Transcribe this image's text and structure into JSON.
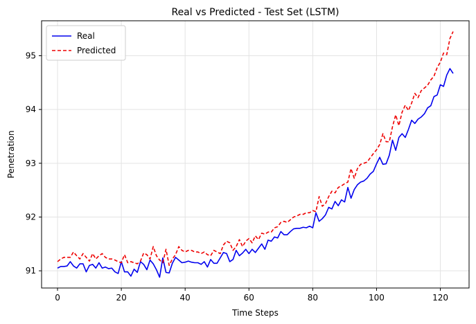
{
  "chart_data": {
    "type": "line",
    "title": "Real vs Predicted - Test Set (LSTM)",
    "xlabel": "Time Steps",
    "ylabel": "Penetration",
    "xlim": [
      -5,
      129
    ],
    "ylim": [
      90.68,
      95.65
    ],
    "xticks": [
      0,
      20,
      40,
      60,
      80,
      100,
      120
    ],
    "yticks": [
      91,
      92,
      93,
      94,
      95
    ],
    "grid": true,
    "legend": "top-left",
    "x": [
      0,
      1,
      2,
      3,
      4,
      5,
      6,
      7,
      8,
      9,
      10,
      11,
      12,
      13,
      14,
      15,
      16,
      17,
      18,
      19,
      20,
      21,
      22,
      23,
      24,
      25,
      26,
      27,
      28,
      29,
      30,
      31,
      32,
      33,
      34,
      35,
      36,
      37,
      38,
      39,
      40,
      41,
      42,
      43,
      44,
      45,
      46,
      47,
      48,
      49,
      50,
      51,
      52,
      53,
      54,
      55,
      56,
      57,
      58,
      59,
      60,
      61,
      62,
      63,
      64,
      65,
      66,
      67,
      68,
      69,
      70,
      71,
      72,
      73,
      74,
      75,
      76,
      77,
      78,
      79,
      80,
      81,
      82,
      83,
      84,
      85,
      86,
      87,
      88,
      89,
      90,
      91,
      92,
      93,
      94,
      95,
      96,
      97,
      98,
      99,
      100,
      101,
      102,
      103,
      104,
      105,
      106,
      107,
      108,
      109,
      110,
      111,
      112,
      113,
      114,
      115,
      116,
      117,
      118,
      119,
      120,
      121,
      122,
      123,
      124
    ],
    "series": [
      {
        "name": "Real",
        "color": "#0000ee",
        "style": "solid",
        "values": [
          91.05,
          91.08,
          91.08,
          91.09,
          91.17,
          91.09,
          91.05,
          91.13,
          91.13,
          90.98,
          91.1,
          91.12,
          91.05,
          91.15,
          91.05,
          91.07,
          91.04,
          91.05,
          90.98,
          90.95,
          91.17,
          90.98,
          90.98,
          90.9,
          91.03,
          90.97,
          91.17,
          91.12,
          91.02,
          91.2,
          91.13,
          91.02,
          90.88,
          91.24,
          90.97,
          90.96,
          91.14,
          91.25,
          91.2,
          91.15,
          91.16,
          91.18,
          91.16,
          91.15,
          91.15,
          91.12,
          91.17,
          91.07,
          91.21,
          91.14,
          91.14,
          91.24,
          91.34,
          91.32,
          91.17,
          91.21,
          91.38,
          91.28,
          91.33,
          91.4,
          91.32,
          91.4,
          91.34,
          91.42,
          91.5,
          91.4,
          91.57,
          91.55,
          91.63,
          91.61,
          91.73,
          91.67,
          91.67,
          91.73,
          91.78,
          91.79,
          91.79,
          91.81,
          91.8,
          91.83,
          91.8,
          92.08,
          91.92,
          91.97,
          92.04,
          92.18,
          92.15,
          92.29,
          92.21,
          92.32,
          92.28,
          92.55,
          92.35,
          92.51,
          92.6,
          92.65,
          92.67,
          92.72,
          92.8,
          92.85,
          92.99,
          93.11,
          92.98,
          92.99,
          93.15,
          93.43,
          93.24,
          93.48,
          93.55,
          93.48,
          93.63,
          93.8,
          93.74,
          93.82,
          93.86,
          93.92,
          94.03,
          94.07,
          94.24,
          94.27,
          94.46,
          94.43,
          94.64,
          94.76,
          94.67
        ]
      },
      {
        "name": "Predicted",
        "color": "#ee0000",
        "style": "dashed",
        "values": [
          91.17,
          91.22,
          91.25,
          91.25,
          91.25,
          91.35,
          91.28,
          91.22,
          91.32,
          91.25,
          91.18,
          91.32,
          91.22,
          91.28,
          91.32,
          91.25,
          91.22,
          91.22,
          91.2,
          91.17,
          91.15,
          91.3,
          91.15,
          91.17,
          91.15,
          91.13,
          91.18,
          91.33,
          91.3,
          91.22,
          91.45,
          91.28,
          91.2,
          91.15,
          91.4,
          91.1,
          91.22,
          91.3,
          91.45,
          91.38,
          91.35,
          91.38,
          91.38,
          91.35,
          91.35,
          91.32,
          91.35,
          91.3,
          91.28,
          91.38,
          91.35,
          91.32,
          91.48,
          91.55,
          91.52,
          91.38,
          91.45,
          91.58,
          91.45,
          91.55,
          91.6,
          91.52,
          91.65,
          91.58,
          91.7,
          91.68,
          91.72,
          91.72,
          91.8,
          91.82,
          91.9,
          91.92,
          91.9,
          91.95,
          92.0,
          92.02,
          92.05,
          92.05,
          92.08,
          92.08,
          92.12,
          92.1,
          92.38,
          92.2,
          92.25,
          92.38,
          92.48,
          92.45,
          92.55,
          92.58,
          92.62,
          92.65,
          92.9,
          92.72,
          92.9,
          92.98,
          93.0,
          93.02,
          93.1,
          93.18,
          93.25,
          93.35,
          93.55,
          93.4,
          93.4,
          93.68,
          93.9,
          93.7,
          93.95,
          94.08,
          93.98,
          94.12,
          94.3,
          94.22,
          94.35,
          94.4,
          94.45,
          94.55,
          94.62,
          94.78,
          94.88,
          95.05,
          95.02,
          95.32,
          95.45
        ]
      }
    ]
  }
}
